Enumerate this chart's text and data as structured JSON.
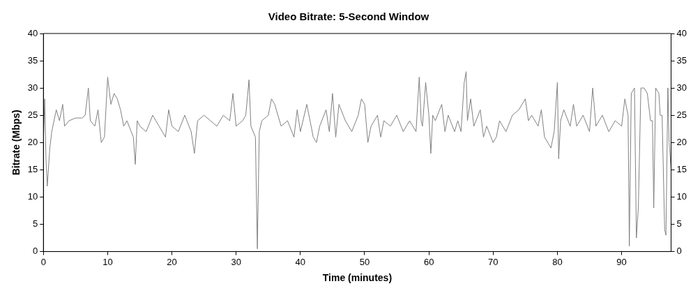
{
  "chart_data": {
    "type": "line",
    "title": "Video Bitrate: 5-Second Window",
    "xlabel": "Time (minutes)",
    "ylabel": "Bitrate (Mbps)",
    "xlim": [
      0,
      97.7
    ],
    "xticks": [
      0,
      10,
      20,
      30,
      40,
      50,
      60,
      70,
      80,
      90
    ],
    "ylim": [
      0,
      40
    ],
    "yticks": [
      0,
      5,
      10,
      15,
      20,
      25,
      30,
      35,
      40
    ],
    "y2lim": [
      0,
      40
    ],
    "y2ticks": [
      0,
      5,
      10,
      15,
      20,
      25,
      30,
      35,
      40
    ],
    "grid": false,
    "legend": false,
    "marker": "none",
    "line_style": "solid",
    "series": [
      {
        "color": "#808080",
        "x": [
          0,
          0.2,
          0.4,
          0.6,
          1,
          1.3,
          2,
          2.5,
          3,
          3.3,
          4,
          5,
          6,
          6.5,
          7,
          7.3,
          8,
          8.5,
          9,
          9.5,
          10,
          10.5,
          11,
          11.5,
          12,
          12.5,
          13,
          14,
          14.3,
          14.6,
          15,
          16,
          17,
          17.5,
          18,
          19,
          19.5,
          20,
          21,
          22,
          23,
          23.5,
          24,
          25,
          26,
          27,
          28,
          29,
          29.5,
          30,
          31,
          31.5,
          32,
          32.3,
          33,
          33.3,
          33.6,
          34,
          35,
          35.5,
          36,
          37,
          38,
          39,
          39.5,
          40,
          41,
          41.5,
          42,
          42.5,
          43,
          44,
          44.5,
          45,
          45.5,
          46,
          47,
          48,
          49,
          49.5,
          50,
          50.5,
          51,
          52,
          52.5,
          53,
          54,
          55,
          56,
          57,
          58,
          58.5,
          58.8,
          59,
          59.5,
          60,
          60.3,
          60.6,
          61,
          62,
          62.5,
          63,
          64,
          64.5,
          65,
          65.5,
          65.8,
          66,
          66.5,
          67,
          68,
          68.5,
          69,
          70,
          70.5,
          71,
          72,
          73,
          74,
          75,
          75.5,
          76,
          77,
          77.5,
          78,
          79,
          79.5,
          80,
          80.2,
          80.5,
          81,
          82,
          82.5,
          83,
          84,
          85,
          85.5,
          86,
          87,
          88,
          89,
          90,
          90.5,
          91,
          91.2,
          91.5,
          92,
          92.3,
          92.6,
          93,
          93.5,
          94,
          94.5,
          94.8,
          95,
          95.3,
          95.8,
          96,
          96.3,
          96.7,
          96.9,
          97.2,
          97.4,
          97.7
        ],
        "values": [
          20,
          28,
          17,
          12,
          19,
          22,
          26,
          24,
          27,
          23,
          24,
          24.5,
          24.5,
          25,
          30,
          24,
          23,
          26,
          20,
          21,
          32,
          27,
          29,
          28,
          26,
          23,
          24,
          21,
          16,
          24,
          23,
          22,
          25,
          24,
          23,
          21,
          26,
          23,
          22,
          25,
          22,
          18,
          24,
          25,
          24,
          23,
          25,
          24,
          29,
          23,
          24,
          25,
          31.5,
          23,
          21,
          0.5,
          22,
          24,
          25,
          28,
          27,
          23,
          24,
          21,
          26,
          22,
          27,
          24,
          21,
          20,
          23,
          26,
          22,
          29,
          21,
          27,
          24,
          22,
          25,
          28,
          27,
          20,
          23,
          25,
          21,
          24,
          23,
          25,
          22,
          24,
          22,
          32,
          24,
          23,
          31,
          25,
          18,
          25,
          24,
          27,
          22,
          25,
          22,
          24,
          22,
          31,
          33,
          24,
          28,
          23,
          26,
          21,
          23,
          20,
          21,
          24,
          22,
          25,
          26,
          28,
          24,
          25,
          23,
          26,
          21,
          19,
          22,
          31,
          17,
          24,
          26,
          23,
          27,
          23,
          25,
          22,
          30,
          23,
          25,
          22,
          24,
          23,
          28,
          25,
          1,
          29,
          30,
          2.5,
          8,
          30,
          30,
          29,
          24,
          24,
          8,
          30,
          29,
          25,
          25,
          4,
          3,
          30,
          20,
          15
        ]
      }
    ]
  }
}
